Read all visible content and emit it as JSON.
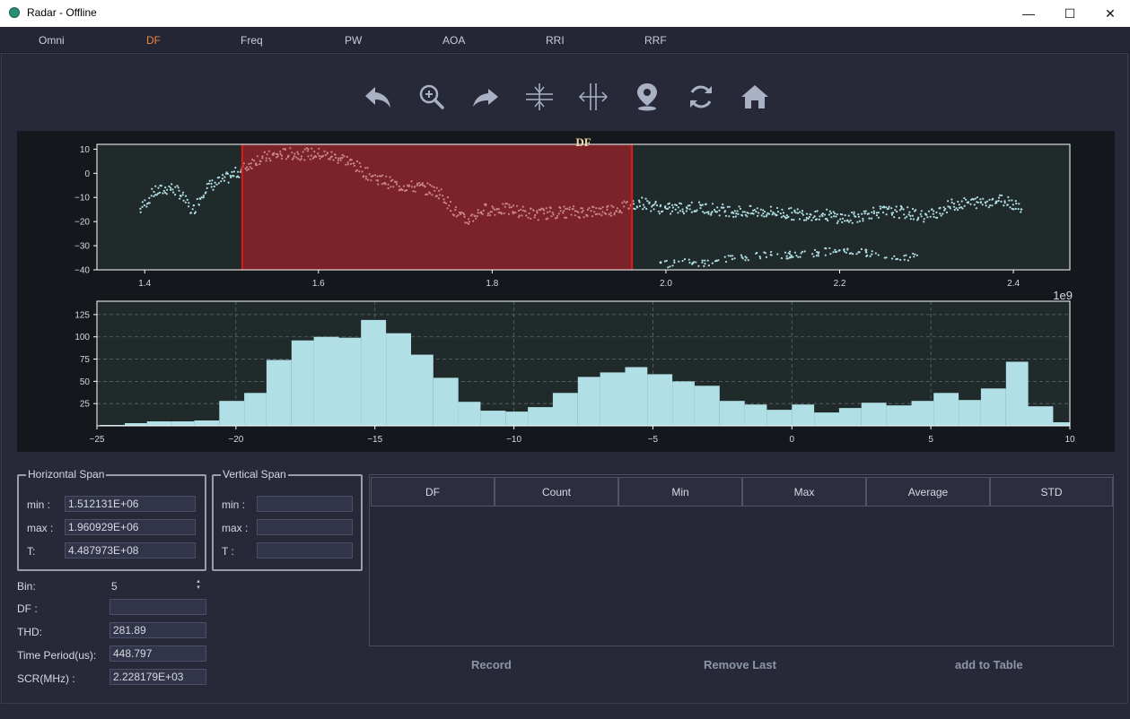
{
  "window": {
    "title": "Radar - Offline",
    "minimize": "—",
    "maximize": "☐",
    "close": "✕"
  },
  "tabs": [
    "Omni",
    "DF",
    "Freq",
    "PW",
    "AOA",
    "RRI",
    "RRF"
  ],
  "active_tab": "DF",
  "toolbar": [
    "back-icon",
    "zoom-icon",
    "forward-icon",
    "vertical-span-icon",
    "horizontal-span-icon",
    "pin-icon",
    "refresh-icon",
    "home-icon"
  ],
  "colors": {
    "accent": "#e8883a",
    "point": "#b0dfe5",
    "selection": "#7b2329",
    "plot_bg": "#202a2a"
  },
  "chart_data": [
    {
      "type": "scatter",
      "title": "DF",
      "x_exponent_label": "1e9",
      "xlim": [
        1.345,
        2.465
      ],
      "ylim": [
        -40,
        12
      ],
      "xticks": [
        1.4,
        1.6,
        1.8,
        2.0,
        2.2,
        2.4
      ],
      "xtick_labels": [
        "1.4",
        "1.6",
        "1.8",
        "2.0",
        "2.2",
        "2.4"
      ],
      "yticks": [
        10,
        0,
        -10,
        -20,
        -30,
        -40
      ],
      "selection": {
        "x_min": 1.5122,
        "x_max": 1.9609
      },
      "main_trend": {
        "x": [
          1.395,
          1.41,
          1.43,
          1.44,
          1.455,
          1.47,
          1.49,
          1.51,
          1.53,
          1.56,
          1.6,
          1.63,
          1.66,
          1.69,
          1.72,
          1.74,
          1.755,
          1.77,
          1.79,
          1.82,
          1.85,
          1.88,
          1.91,
          1.94,
          1.97,
          2.0,
          2.03,
          2.06,
          2.09,
          2.12,
          2.15,
          2.18,
          2.21,
          2.24,
          2.27,
          2.3,
          2.33,
          2.36,
          2.39,
          2.41
        ],
        "y": [
          -15,
          -8,
          -6,
          -8,
          -16,
          -6,
          -3,
          1,
          6,
          8,
          8,
          6,
          -1,
          -5,
          -6,
          -8,
          -15,
          -20,
          -15,
          -15,
          -17,
          -16,
          -16,
          -15,
          -12,
          -15,
          -14,
          -15,
          -16,
          -16,
          -17,
          -17,
          -19,
          -16,
          -16,
          -18,
          -13,
          -12,
          -11,
          -14
        ]
      },
      "lower_trend": {
        "x": [
          1.99,
          2.02,
          2.05,
          2.08,
          2.11,
          2.14,
          2.17,
          2.2,
          2.23,
          2.26,
          2.29
        ],
        "y": [
          -38,
          -37,
          -37,
          -35,
          -34,
          -34,
          -33,
          -32,
          -33,
          -36,
          -34
        ]
      }
    },
    {
      "type": "bar",
      "title": "",
      "xlim": [
        -25,
        10
      ],
      "ylim": [
        0,
        140
      ],
      "xticks": [
        -25,
        -20,
        -15,
        -10,
        -5,
        0,
        5,
        10
      ],
      "xtick_labels": [
        "−25",
        "−20",
        "−15",
        "−10",
        "−5",
        "0",
        "5",
        "10"
      ],
      "yticks": [
        25,
        50,
        75,
        100,
        125
      ],
      "bin_edges": [
        -24.9,
        -24.0,
        -23.2,
        -22.3,
        -21.5,
        -20.6,
        -19.7,
        -18.9,
        -18.0,
        -17.2,
        -16.3,
        -15.5,
        -14.6,
        -13.7,
        -12.9,
        -12.0,
        -11.2,
        -10.3,
        -9.5,
        -8.6,
        -7.7,
        -6.9,
        -6.0,
        -5.2,
        -4.3,
        -3.5,
        -2.6,
        -1.7,
        -0.9,
        0.0,
        0.8,
        1.7,
        2.5,
        3.4,
        4.3,
        5.1,
        6.0,
        6.8,
        7.7,
        8.5,
        9.4,
        10.3
      ],
      "counts": [
        1,
        3,
        5,
        5,
        6,
        28,
        37,
        74,
        96,
        100,
        99,
        119,
        104,
        80,
        54,
        27,
        17,
        16,
        21,
        37,
        55,
        60,
        66,
        58,
        50,
        45,
        28,
        24,
        18,
        24,
        15,
        20,
        26,
        23,
        28,
        37,
        29,
        42,
        72,
        22,
        4
      ]
    }
  ],
  "horizontal_span": {
    "title": "Horizontal Span",
    "min_label": "min :",
    "min_value": "1.512131E+06",
    "max_label": "max :",
    "max_value": "1.960929E+06",
    "t_label": "T:",
    "t_value": "4.487973E+08"
  },
  "vertical_span": {
    "title": "Vertical Span",
    "min_label": "min :",
    "min_value": "",
    "max_label": "max :",
    "max_value": "",
    "t_label": "T :",
    "t_value": ""
  },
  "stats": {
    "bin_label": "Bin:",
    "bin_value": "5",
    "df_label": "DF :",
    "df_value": "",
    "thd_label": "THD:",
    "thd_value": "281.89",
    "time_label": "Time Period(us):",
    "time_value": "448.797",
    "scr_label": "SCR(MHz) :",
    "scr_value": "2.228179E+03"
  },
  "table": {
    "headers": [
      "DF",
      "Count",
      "Min",
      "Max",
      "Average",
      "STD"
    ]
  },
  "actions": {
    "record": "Record",
    "remove_last": "Remove Last",
    "add_to_table": "add to Table"
  }
}
